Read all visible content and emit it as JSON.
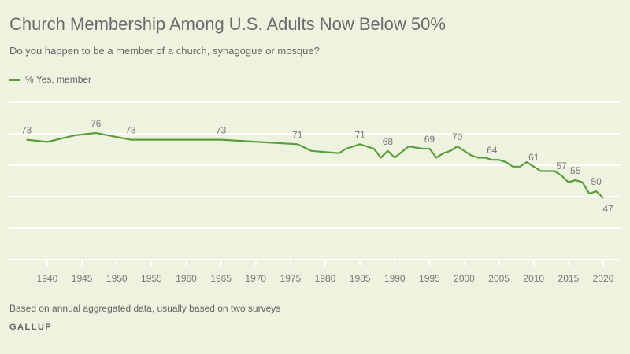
{
  "chart_data": {
    "type": "line",
    "title": "Church Membership Among U.S. Adults Now Below 50%",
    "subtitle": "Do you happen to be a member of a church, synagogue or mosque?",
    "legend": {
      "placement": "top-left",
      "entries": [
        "% Yes, member"
      ]
    },
    "note": "Based on annual aggregated data, usually based on two surveys",
    "source": "GALLUP",
    "xlim": [
      1936,
      2023
    ],
    "ylim": [
      19.5,
      89.7
    ],
    "grid": true,
    "x_ticks": [
      1940,
      1945,
      1950,
      1955,
      1960,
      1965,
      1970,
      1975,
      1980,
      1985,
      1990,
      1995,
      2000,
      2005,
      2010,
      2015,
      2020
    ],
    "color": "#5a9e3a",
    "series": [
      {
        "name": "% Yes, member",
        "x": [
          1937,
          1940,
          1944,
          1947,
          1952,
          1965,
          1976,
          1978,
          1982,
          1983,
          1985,
          1987,
          1988,
          1989,
          1990,
          1992,
          1994,
          1995,
          1996,
          1997,
          1998,
          1999,
          2001,
          2002,
          2003,
          2004,
          2005,
          2006,
          2007,
          2008,
          2009,
          2010,
          2011,
          2012,
          2013,
          2014,
          2015,
          2016,
          2017,
          2018,
          2019,
          2020
        ],
        "values": [
          73,
          72,
          75,
          76,
          73,
          73,
          71,
          68,
          67,
          69,
          71,
          69,
          65,
          68,
          65,
          70,
          69,
          69,
          65,
          67,
          68,
          70,
          66,
          65,
          65,
          64,
          64,
          63,
          61,
          61,
          63,
          61,
          59,
          59,
          59,
          57,
          54,
          55,
          54,
          49,
          50,
          47
        ]
      }
    ],
    "data_labels": [
      {
        "year": 1937,
        "value": 73
      },
      {
        "year": 1947,
        "value": 76
      },
      {
        "year": 1952,
        "value": 73
      },
      {
        "year": 1965,
        "value": 73
      },
      {
        "year": 1976,
        "value": 71
      },
      {
        "year": 1985,
        "value": 71
      },
      {
        "year": 1989,
        "value": 68
      },
      {
        "year": 1995,
        "value": 69
      },
      {
        "year": 1999,
        "value": 70
      },
      {
        "year": 2004,
        "value": 64
      },
      {
        "year": 2010,
        "value": 61
      },
      {
        "year": 2014,
        "value": 57
      },
      {
        "year": 2016,
        "value": 55
      },
      {
        "year": 2019,
        "value": 50
      },
      {
        "year": 2020,
        "value": 47,
        "position": "below"
      }
    ]
  }
}
